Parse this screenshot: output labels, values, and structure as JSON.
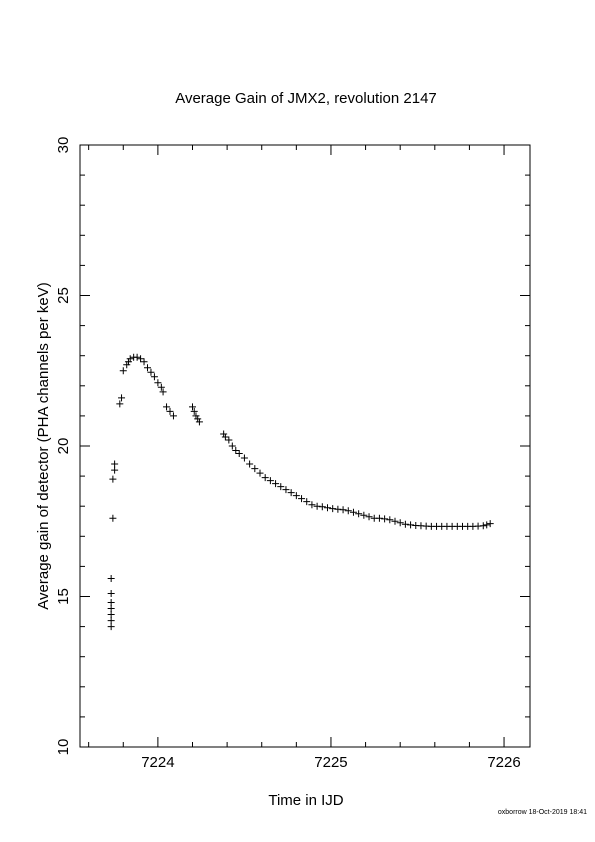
{
  "chart_data": {
    "type": "scatter",
    "title": "Average Gain of JMX2, revolution 2147",
    "xlabel": "Time in IJD",
    "ylabel": "Average gain of detector (PHA channels per keV)",
    "xlim": [
      7223.55,
      7226.15
    ],
    "ylim": [
      10,
      30
    ],
    "xticks": [
      7224,
      7225,
      7226
    ],
    "xtick_labels": [
      "7224",
      "7225",
      "7226"
    ],
    "yticks": [
      10,
      15,
      20,
      25,
      30
    ],
    "ytick_labels": [
      "10",
      "15",
      "20",
      "25",
      "30"
    ],
    "grid": false,
    "marker": "+",
    "series": [
      {
        "x": [
          7223.73,
          7223.73,
          7223.73,
          7223.73,
          7223.73,
          7223.73,
          7223.73,
          7223.74,
          7223.74,
          7223.75,
          7223.75,
          7223.78,
          7223.79,
          7223.8,
          7223.82,
          7223.83,
          7223.84,
          7223.86,
          7223.88,
          7223.9,
          7223.92,
          7223.94,
          7223.96,
          7223.98,
          7224.0,
          7224.02,
          7224.03,
          7224.05,
          7224.07,
          7224.09,
          7224.2,
          7224.21,
          7224.22,
          7224.23,
          7224.24,
          7224.38,
          7224.39,
          7224.41,
          7224.43,
          7224.45,
          7224.47,
          7224.5,
          7224.53,
          7224.56,
          7224.59,
          7224.62,
          7224.65,
          7224.68,
          7224.71,
          7224.74,
          7224.77,
          7224.8,
          7224.83,
          7224.86,
          7224.89,
          7224.92,
          7224.95,
          7224.98,
          7225.01,
          7225.04,
          7225.07,
          7225.1,
          7225.13,
          7225.16,
          7225.19,
          7225.22,
          7225.25,
          7225.28,
          7225.31,
          7225.34,
          7225.37,
          7225.4,
          7225.43,
          7225.46,
          7225.49,
          7225.52,
          7225.55,
          7225.58,
          7225.61,
          7225.64,
          7225.67,
          7225.7,
          7225.73,
          7225.76,
          7225.79,
          7225.82,
          7225.85,
          7225.88,
          7225.9,
          7225.92
        ],
        "y": [
          14.0,
          14.2,
          14.4,
          14.6,
          14.8,
          15.1,
          15.6,
          17.6,
          18.9,
          19.2,
          19.4,
          21.4,
          21.6,
          22.5,
          22.7,
          22.8,
          22.9,
          22.95,
          22.95,
          22.9,
          22.8,
          22.6,
          22.45,
          22.3,
          22.1,
          21.95,
          21.8,
          21.3,
          21.15,
          21.0,
          21.3,
          21.15,
          21.0,
          20.9,
          20.8,
          20.4,
          20.3,
          20.2,
          20.0,
          19.85,
          19.75,
          19.6,
          19.4,
          19.25,
          19.1,
          18.95,
          18.85,
          18.75,
          18.65,
          18.55,
          18.45,
          18.35,
          18.25,
          18.15,
          18.05,
          18.0,
          17.98,
          17.95,
          17.92,
          17.9,
          17.88,
          17.85,
          17.8,
          17.75,
          17.7,
          17.65,
          17.6,
          17.6,
          17.58,
          17.55,
          17.5,
          17.45,
          17.4,
          17.38,
          17.36,
          17.35,
          17.34,
          17.33,
          17.33,
          17.33,
          17.33,
          17.33,
          17.33,
          17.33,
          17.33,
          17.33,
          17.34,
          17.35,
          17.38,
          17.42
        ]
      }
    ]
  },
  "footer": {
    "credit": "oxborrow 18-Oct-2019 18:41"
  }
}
